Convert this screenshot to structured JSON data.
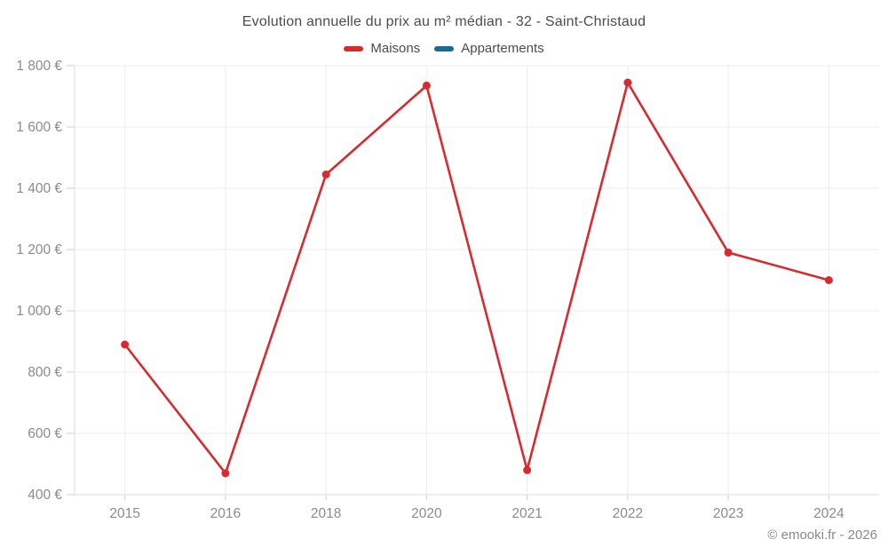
{
  "header": {
    "title": "Evolution annuelle du prix au m² médian - 32 - Saint-Christaud",
    "legend": [
      {
        "label": "Maisons",
        "color": "#d62b2f"
      },
      {
        "label": "Appartements",
        "color": "#186d92"
      }
    ]
  },
  "footer": {
    "credit": "© emooki.fr - 2026"
  },
  "chart_data": {
    "type": "line",
    "title": "Evolution annuelle du prix au m² médian - 32 - Saint-Christaud",
    "categories": [
      "2015",
      "2016",
      "2018",
      "2020",
      "2021",
      "2022",
      "2023",
      "2024"
    ],
    "series": [
      {
        "name": "Maisons",
        "color": "#d62b2f",
        "values": [
          890,
          470,
          1445,
          1735,
          480,
          1745,
          1190,
          1100
        ]
      },
      {
        "name": "Appartements",
        "color": "#186d92",
        "values": []
      }
    ],
    "xlabel": "",
    "ylabel": "",
    "ylim": [
      400,
      1800
    ],
    "ytick_step": 200,
    "ytick_labels": [
      "400 €",
      "600 €",
      "800 €",
      "1 000 €",
      "1 200 €",
      "1 400 €",
      "1 600 €",
      "1 800 €"
    ],
    "grid": true,
    "legend_position": "top",
    "colors": {
      "grid": "#ededed",
      "axis_border": "#dcdcdc",
      "tick": "#cfcfcf",
      "axis_text": "#8b8b8b"
    }
  }
}
